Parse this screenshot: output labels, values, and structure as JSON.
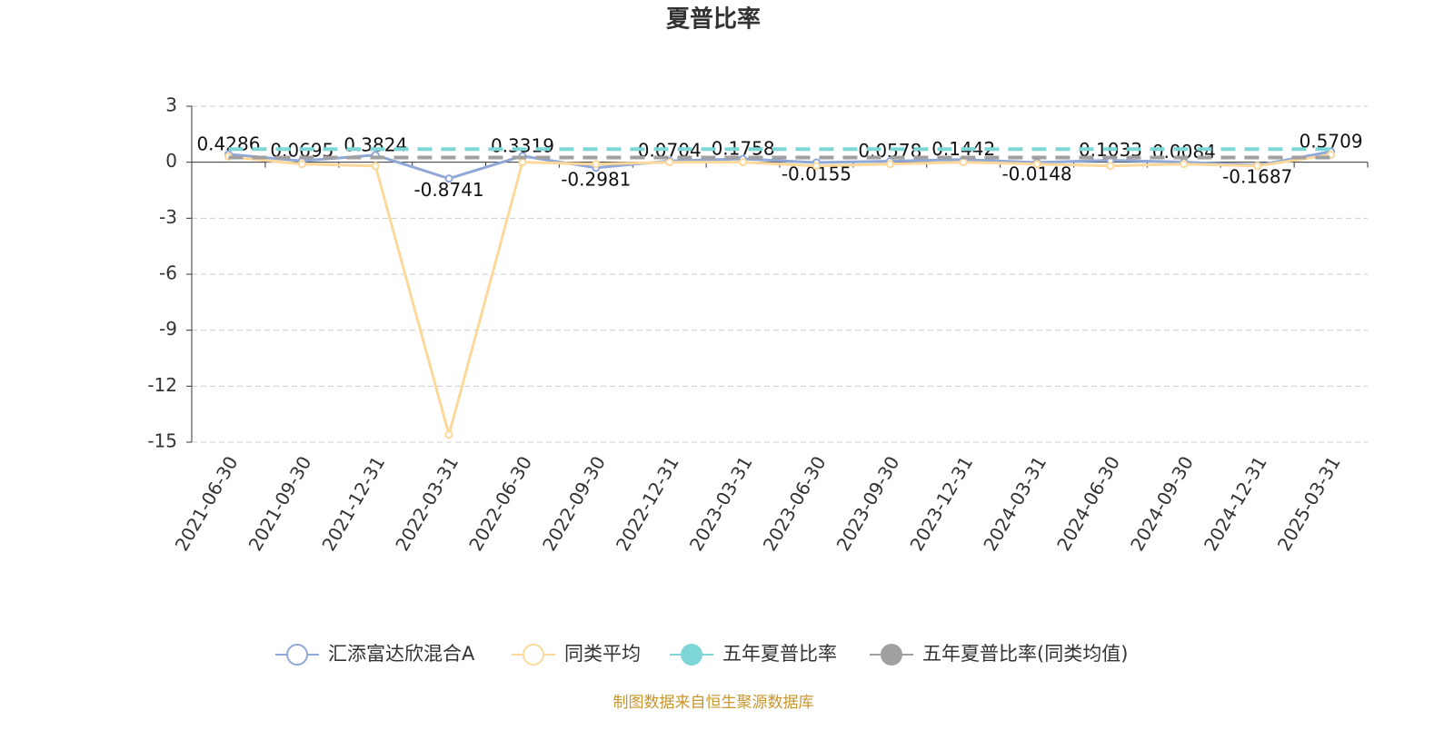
{
  "chart_data": {
    "type": "line",
    "title": "夏普比率",
    "categories": [
      "2021-06-30",
      "2021-09-30",
      "2021-12-31",
      "2022-03-31",
      "2022-06-30",
      "2022-09-30",
      "2022-12-31",
      "2023-03-31",
      "2023-06-30",
      "2023-09-30",
      "2023-12-31",
      "2024-03-31",
      "2024-06-30",
      "2024-09-30",
      "2024-12-31",
      "2025-03-31"
    ],
    "series": [
      {
        "name": "汇添富达欣混合A",
        "color": "#8fa8d8",
        "dashed": false,
        "labels": true,
        "values": [
          0.4286,
          0.0695,
          0.3824,
          -0.8741,
          0.3319,
          -0.2981,
          0.0704,
          0.1758,
          -0.0155,
          0.0578,
          0.1442,
          -0.0148,
          0.1033,
          0.0084,
          -0.1687,
          0.5709
        ]
      },
      {
        "name": "同类平均",
        "color": "#fcd89a",
        "dashed": false,
        "labels": false,
        "values": [
          0.3,
          -0.1,
          -0.2,
          -14.6,
          0.0,
          -0.1,
          0.0,
          0.0,
          -0.2,
          -0.1,
          0.0,
          -0.1,
          -0.2,
          -0.1,
          -0.2,
          0.4
        ]
      },
      {
        "name": "五年夏普比率",
        "color": "#7fd6d6",
        "dashed": true,
        "labels": false,
        "values": [
          0.7,
          0.7,
          0.7,
          0.7,
          0.7,
          0.7,
          0.7,
          0.7,
          0.7,
          0.7,
          0.7,
          0.7,
          0.7,
          0.7,
          0.7,
          0.7
        ]
      },
      {
        "name": "五年夏普比率(同类均值)",
        "color": "#a0a0a0",
        "dashed": true,
        "labels": false,
        "values": [
          0.25,
          0.25,
          0.25,
          0.25,
          0.25,
          0.25,
          0.25,
          0.25,
          0.25,
          0.25,
          0.25,
          0.25,
          0.25,
          0.25,
          0.25,
          0.25
        ]
      }
    ],
    "ylim": [
      -15,
      3
    ],
    "yticks": [
      -15,
      -12,
      -9,
      -6,
      -3,
      0,
      3
    ],
    "grid": true,
    "source": "制图数据来自恒生聚源数据库"
  }
}
